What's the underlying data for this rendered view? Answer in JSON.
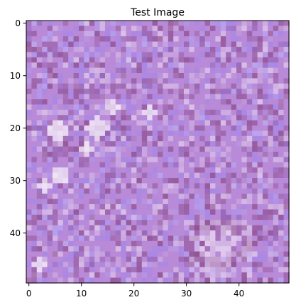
{
  "figure": {
    "title": "Test Image",
    "x_ticks": [
      "0",
      "10",
      "20",
      "30",
      "40"
    ],
    "y_ticks": [
      "0",
      "10",
      "20",
      "30",
      "40"
    ]
  },
  "image": {
    "grid_size": 50,
    "description_palette": {
      "base": "#b88ad8",
      "dark": "#8e4f8f",
      "light": "#e8d6ee",
      "blue": "#9b86f2",
      "pink": "#d9b7d8"
    }
  },
  "chart_data": {
    "type": "heatmap",
    "title": "Test Image",
    "xlim": [
      -0.5,
      49.5
    ],
    "ylim": [
      49.5,
      -0.5
    ],
    "x_ticks": [
      0,
      10,
      20,
      30,
      40
    ],
    "y_ticks": [
      0,
      10,
      20,
      30,
      40
    ]
  }
}
